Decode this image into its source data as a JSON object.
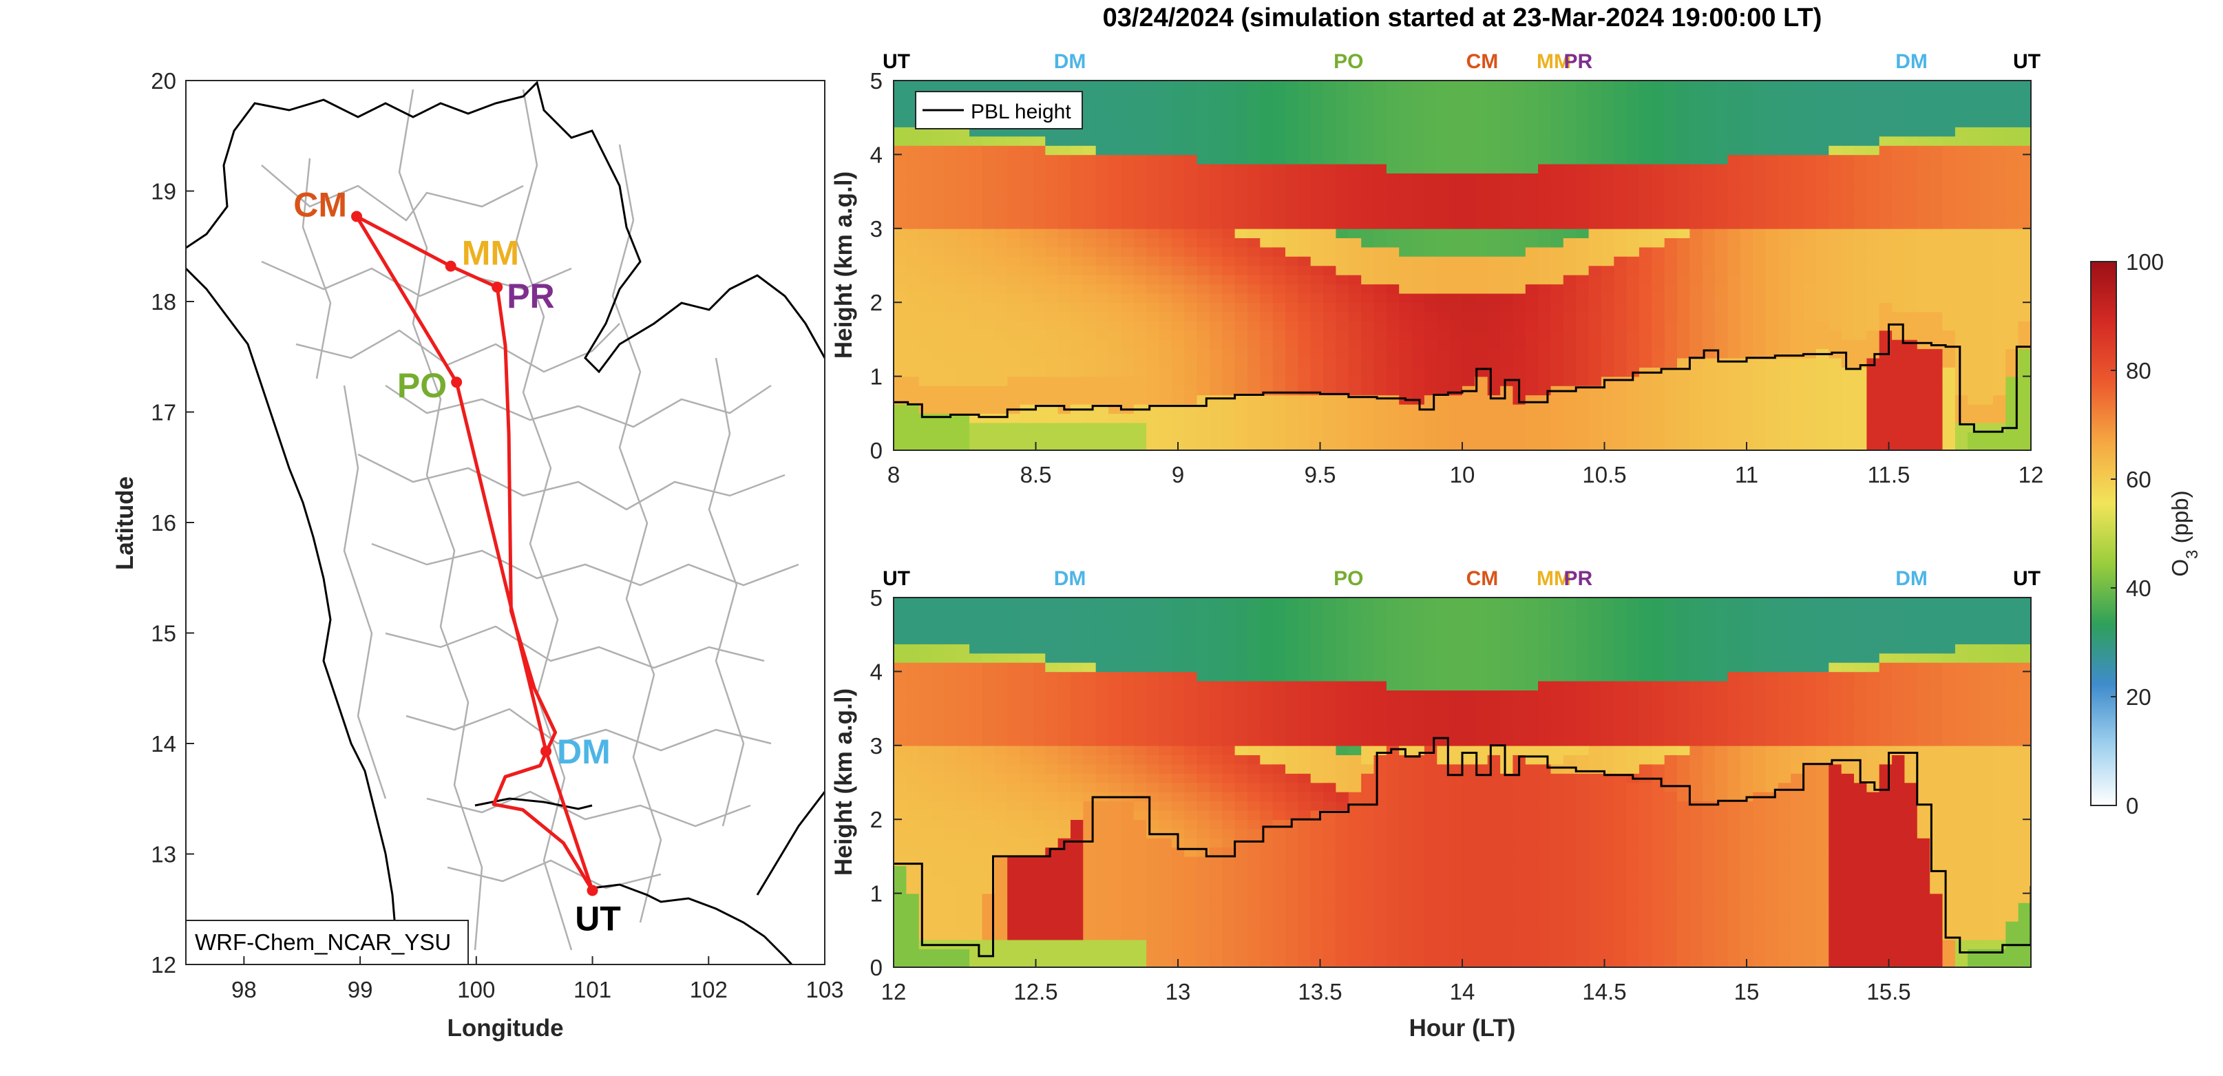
{
  "figure": {
    "title": "03/24/2024 (simulation started at 23-Mar-2024 19:00:00 LT)",
    "model_label": "WRF-Chem_NCAR_YSU",
    "legend_label": "PBL height",
    "colorbar_label": "O3 (ppb)",
    "colorbar_label_main": "O",
    "colorbar_label_sub": "3",
    "colorbar_label_unit": " (ppb)"
  },
  "colors": {
    "route": "#ee1c1c",
    "site_UT": "#000000",
    "site_DM": "#4db5e6",
    "site_PO": "#76ad2f",
    "site_CM": "#d95319",
    "site_MM": "#edb120",
    "site_PR": "#7e2f8e",
    "boundary_major": "#000000",
    "boundary_minor": "#b0b0b0"
  },
  "chart_data": [
    {
      "type": "line",
      "name": "map",
      "xlabel": "Longitude",
      "ylabel": "Latitude",
      "xlim": [
        97.5,
        103
      ],
      "ylim": [
        12,
        20
      ],
      "xticks": [
        "98",
        "99",
        "100",
        "101",
        "102",
        "103"
      ],
      "yticks": [
        "12",
        "13",
        "14",
        "15",
        "16",
        "17",
        "18",
        "19",
        "20"
      ],
      "sites": [
        {
          "code": "CM",
          "lon": 98.97,
          "lat": 18.77,
          "color_key": "site_CM"
        },
        {
          "code": "MM",
          "lon": 99.78,
          "lat": 18.32,
          "color_key": "site_MM"
        },
        {
          "code": "PR",
          "lon": 100.18,
          "lat": 18.13,
          "color_key": "site_PR"
        },
        {
          "code": "PO",
          "lon": 99.83,
          "lat": 17.27,
          "color_key": "site_PO"
        },
        {
          "code": "DM",
          "lon": 100.6,
          "lat": 13.93,
          "color_key": "site_DM"
        },
        {
          "code": "UT",
          "lon": 101.0,
          "lat": 12.67,
          "color_key": "site_UT"
        }
      ],
      "route": [
        [
          101.0,
          12.67
        ],
        [
          100.6,
          13.93
        ],
        [
          99.83,
          17.27
        ],
        [
          98.97,
          18.77
        ],
        [
          99.78,
          18.32
        ],
        [
          100.18,
          18.13
        ],
        [
          100.25,
          17.6
        ],
        [
          100.28,
          16.8
        ],
        [
          100.3,
          15.2
        ],
        [
          100.5,
          14.5
        ],
        [
          100.68,
          14.1
        ],
        [
          100.55,
          13.8
        ],
        [
          100.25,
          13.7
        ],
        [
          100.15,
          13.45
        ],
        [
          100.4,
          13.4
        ],
        [
          100.75,
          13.1
        ],
        [
          101.0,
          12.67
        ]
      ]
    },
    {
      "type": "heatmap",
      "name": "curtain-top",
      "ylabel": "Height (km a.g.l)",
      "xlim": [
        8,
        12
      ],
      "ylim": [
        0,
        5
      ],
      "xticks": [
        "8",
        "8.5",
        "9",
        "9.5",
        "10",
        "10.5",
        "11",
        "11.5",
        "12"
      ],
      "yticks": [
        "0",
        "1",
        "2",
        "3",
        "4",
        "5"
      ],
      "site_labels": [
        {
          "code": "UT",
          "hour": 8.0,
          "color_key": "site_UT"
        },
        {
          "code": "DM",
          "hour": 8.62,
          "color_key": "site_DM"
        },
        {
          "code": "PO",
          "hour": 9.6,
          "color_key": "site_PO"
        },
        {
          "code": "CM",
          "hour": 10.07,
          "color_key": "site_CM"
        },
        {
          "code": "MM",
          "hour": 10.31,
          "color_key": "site_MM"
        },
        {
          "code": "PR",
          "hour": 10.42,
          "color_key": "site_PR"
        },
        {
          "code": "DM",
          "hour": 11.58,
          "color_key": "site_DM"
        },
        {
          "code": "UT",
          "hour": 11.95,
          "color_key": "site_UT"
        }
      ],
      "pbl_height": {
        "hour": [
          8.0,
          8.05,
          8.1,
          8.2,
          8.3,
          8.4,
          8.5,
          8.6,
          8.7,
          8.8,
          8.9,
          9.0,
          9.1,
          9.2,
          9.3,
          9.4,
          9.5,
          9.6,
          9.7,
          9.8,
          9.85,
          9.9,
          9.95,
          10.0,
          10.05,
          10.1,
          10.15,
          10.2,
          10.3,
          10.4,
          10.5,
          10.6,
          10.7,
          10.8,
          10.85,
          10.9,
          11.0,
          11.1,
          11.2,
          11.3,
          11.35,
          11.4,
          11.45,
          11.5,
          11.55,
          11.6,
          11.65,
          11.7,
          11.75,
          11.8,
          11.9,
          11.95,
          12.0
        ],
        "km": [
          0.65,
          0.62,
          0.45,
          0.48,
          0.45,
          0.55,
          0.6,
          0.55,
          0.6,
          0.55,
          0.6,
          0.6,
          0.7,
          0.75,
          0.78,
          0.78,
          0.76,
          0.72,
          0.7,
          0.68,
          0.55,
          0.75,
          0.78,
          0.8,
          1.1,
          0.7,
          0.95,
          0.65,
          0.8,
          0.85,
          0.95,
          1.05,
          1.1,
          1.25,
          1.35,
          1.2,
          1.25,
          1.28,
          1.3,
          1.32,
          1.1,
          1.15,
          1.3,
          1.7,
          1.45,
          1.45,
          1.42,
          1.4,
          0.35,
          0.25,
          0.3,
          1.4,
          1.4
        ]
      },
      "o3_ppb": "modelled ozone curtain, colour scale 0-100 ppb"
    },
    {
      "type": "heatmap",
      "name": "curtain-bottom",
      "xlabel": "Hour (LT)",
      "ylabel": "Height (km a.g.l)",
      "xlim": [
        12,
        16
      ],
      "ylim": [
        0,
        5
      ],
      "xticks": [
        "12",
        "12.5",
        "13",
        "13.5",
        "14",
        "14.5",
        "15",
        "15.5"
      ],
      "yticks": [
        "0",
        "1",
        "2",
        "3",
        "4",
        "5"
      ],
      "site_labels": [
        {
          "code": "UT",
          "hour": 12.0,
          "color_key": "site_UT"
        },
        {
          "code": "DM",
          "hour": 12.62,
          "color_key": "site_DM"
        },
        {
          "code": "PO",
          "hour": 13.6,
          "color_key": "site_PO"
        },
        {
          "code": "CM",
          "hour": 14.07,
          "color_key": "site_CM"
        },
        {
          "code": "MM",
          "hour": 14.31,
          "color_key": "site_MM"
        },
        {
          "code": "PR",
          "hour": 14.42,
          "color_key": "site_PR"
        },
        {
          "code": "DM",
          "hour": 15.58,
          "color_key": "site_DM"
        },
        {
          "code": "UT",
          "hour": 15.95,
          "color_key": "site_UT"
        }
      ],
      "pbl_height": {
        "hour": [
          12.0,
          12.05,
          12.1,
          12.2,
          12.3,
          12.35,
          12.45,
          12.55,
          12.6,
          12.7,
          12.8,
          12.9,
          13.0,
          13.1,
          13.2,
          13.3,
          13.4,
          13.5,
          13.6,
          13.7,
          13.75,
          13.8,
          13.85,
          13.9,
          13.95,
          14.0,
          14.05,
          14.1,
          14.15,
          14.2,
          14.3,
          14.4,
          14.5,
          14.6,
          14.7,
          14.8,
          14.9,
          15.0,
          15.1,
          15.2,
          15.3,
          15.4,
          15.45,
          15.5,
          15.55,
          15.6,
          15.65,
          15.7,
          15.75,
          15.8,
          15.9,
          16.0
        ],
        "km": [
          1.4,
          1.4,
          0.3,
          0.3,
          0.15,
          1.5,
          1.5,
          1.6,
          1.7,
          2.3,
          2.3,
          1.8,
          1.6,
          1.5,
          1.7,
          1.9,
          2.0,
          2.1,
          2.2,
          2.9,
          2.95,
          2.85,
          2.9,
          3.1,
          2.6,
          2.9,
          2.6,
          3.0,
          2.6,
          2.85,
          2.7,
          2.65,
          2.6,
          2.55,
          2.45,
          2.2,
          2.25,
          2.3,
          2.4,
          2.75,
          2.8,
          2.5,
          2.4,
          2.9,
          2.9,
          2.2,
          1.3,
          0.4,
          0.2,
          0.2,
          0.3,
          1.1
        ]
      },
      "o3_ppb": "modelled ozone curtain, colour scale 0-100 ppb"
    },
    {
      "type": "heatmap",
      "name": "colorbar",
      "ylim": [
        0,
        100
      ],
      "yticks": [
        "0",
        "20",
        "40",
        "60",
        "80",
        "100"
      ],
      "colormap": [
        "#ffffff",
        "#9fd0ee",
        "#3f8ccc",
        "#2fa05a",
        "#9acd3c",
        "#f2e45a",
        "#f5a842",
        "#ec5a2e",
        "#d42a24",
        "#9c1016"
      ]
    }
  ]
}
